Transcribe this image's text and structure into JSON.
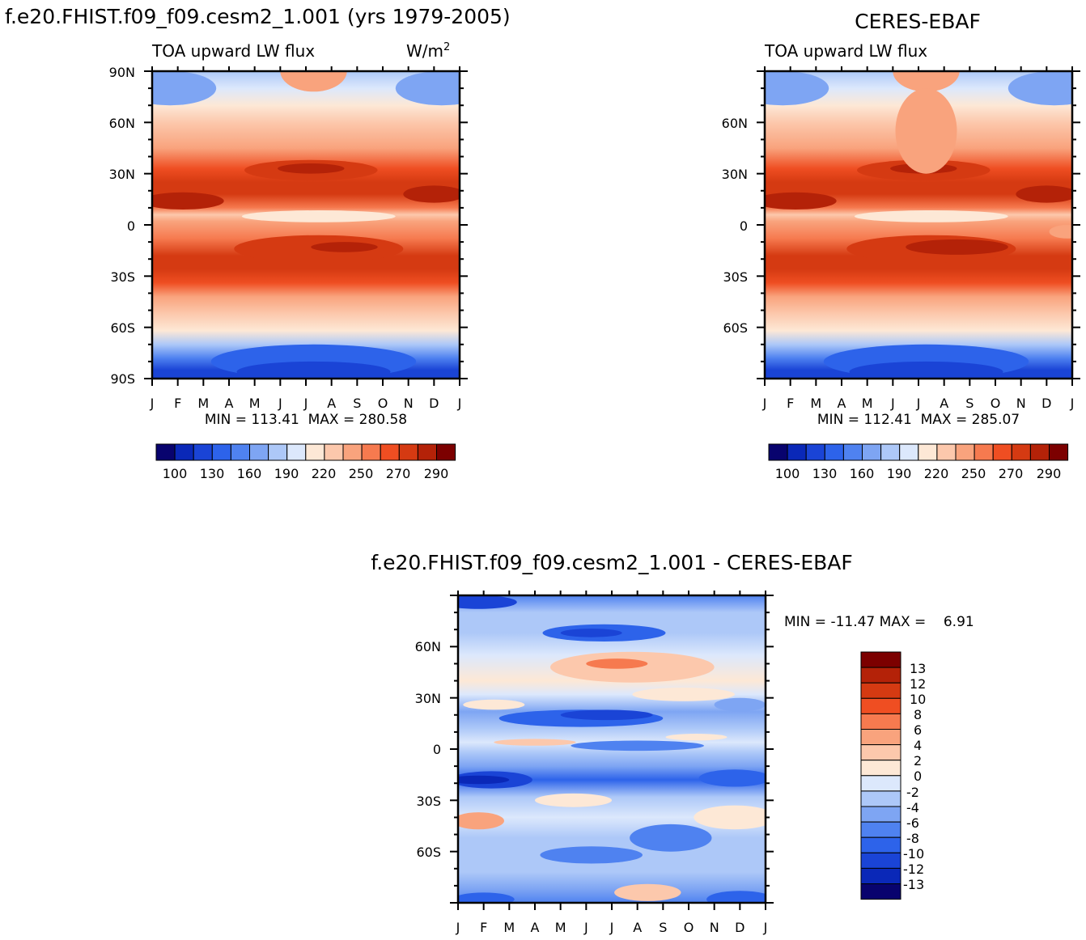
{
  "figure": {
    "left_title": "f.e20.FHIST.f09_f09.cesm2_1.001 (yrs 1979-2005)",
    "right_title": "CERES-EBAF",
    "diff_title": "f.e20.FHIST.f09_f09.cesm2_1.001 - CERES-EBAF"
  },
  "colors": {
    "abs_levels": [
      "#08036e",
      "#0a28b8",
      "#1a44d6",
      "#2d63ea",
      "#4f82f0",
      "#7ea5f3",
      "#adc8f8",
      "#dce8fc",
      "#fde8d6",
      "#fcc8ac",
      "#f9a37d",
      "#f67a4f",
      "#ef4e22",
      "#d53a12",
      "#b42208",
      "#7c0000"
    ],
    "diff_levels": [
      "#7c0000",
      "#b42208",
      "#d53a12",
      "#ef4e22",
      "#f67a4f",
      "#f9a37d",
      "#fcc8ac",
      "#fde8d6",
      "#dce8fc",
      "#adc8f8",
      "#7ea5f3",
      "#4f82f0",
      "#2d63ea",
      "#1a44d6",
      "#0a28b8",
      "#08036e"
    ]
  },
  "chart_data": [
    {
      "type": "heatmap",
      "name": "model",
      "title": "f.e20.FHIST.f09_f09.cesm2_1.001 (yrs 1979-2005)",
      "subtitle_left": "TOA upward LW flux",
      "subtitle_right": "W/m",
      "subtitle_right_sup": "2",
      "x_ticks": [
        "J",
        "F",
        "M",
        "A",
        "M",
        "J",
        "J",
        "A",
        "S",
        "O",
        "N",
        "D",
        "J"
      ],
      "y_ticks": [
        "90N",
        "60N",
        "30N",
        "0",
        "30S",
        "60S",
        "90S"
      ],
      "y_range": [
        -90,
        90
      ],
      "stats": "MIN = 113.41  MAX = 280.58",
      "min": 113.41,
      "max": 280.58,
      "colorbar_labels": [
        "100",
        "130",
        "160",
        "190",
        "220",
        "250",
        "270",
        "290"
      ],
      "peak_shift": 0
    },
    {
      "type": "heatmap",
      "name": "obs",
      "title": "CERES-EBAF",
      "subtitle_left": "TOA upward LW flux",
      "x_ticks": [
        "J",
        "F",
        "M",
        "A",
        "M",
        "J",
        "J",
        "A",
        "S",
        "O",
        "N",
        "D",
        "J"
      ],
      "y_ticks": [
        "60N",
        "30N",
        "0",
        "30S",
        "60S"
      ],
      "y_range": [
        -90,
        90
      ],
      "stats": "MIN = 112.41  MAX = 285.07",
      "min": 112.41,
      "max": 285.07,
      "colorbar_labels": [
        "100",
        "130",
        "160",
        "190",
        "220",
        "250",
        "270",
        "290"
      ],
      "peak_shift": 4
    },
    {
      "type": "heatmap",
      "name": "difference",
      "title": "f.e20.FHIST.f09_f09.cesm2_1.001 - CERES-EBAF",
      "x_ticks": [
        "J",
        "F",
        "M",
        "A",
        "M",
        "J",
        "J",
        "A",
        "S",
        "O",
        "N",
        "D",
        "J"
      ],
      "y_ticks": [
        "60N",
        "30N",
        "0",
        "30S",
        "60S"
      ],
      "y_range": [
        -90,
        90
      ],
      "stats": "MIN = -11.47 MAX =    6.91",
      "min": -11.47,
      "max": 6.91,
      "colorbar_levels": [
        "13",
        "12",
        "10",
        "8",
        "6",
        "4",
        "2",
        "0",
        "-2",
        "-4",
        "-6",
        "-8",
        "-10",
        "-12",
        "-13"
      ]
    }
  ]
}
